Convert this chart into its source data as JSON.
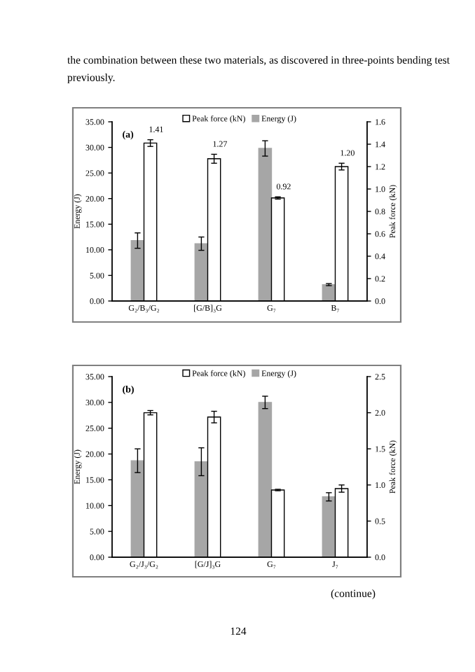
{
  "chart_data": [
    {
      "type": "bar",
      "title": "(a)",
      "ylabel": "Energy (J)",
      "y2label": "Peak force (kN)",
      "categories": [
        "G₂/B₃/G₂",
        "[G/B]₃G",
        "G₇",
        "B₇"
      ],
      "series": [
        {
          "name": "Energy (J)",
          "color": "#a6a6a6",
          "values": [
            11.8,
            11.2,
            29.8,
            3.2
          ],
          "errors": [
            1.5,
            1.3,
            1.5,
            0.2
          ]
        },
        {
          "name": "Peak force (kN)",
          "color": "#ffffff",
          "axis": "y2",
          "values": [
            1.41,
            1.27,
            0.92,
            1.2
          ],
          "errors": [
            0.03,
            0.04,
            0.01,
            0.03
          ],
          "value_labels": [
            "1.41",
            "1.27",
            "0.92",
            "1.20"
          ]
        }
      ],
      "ylim": [
        0,
        35
      ],
      "yticks": [
        {
          "value": 0,
          "label": "0.00"
        },
        {
          "value": 5,
          "label": "5.00"
        },
        {
          "value": 10,
          "label": "10.00"
        },
        {
          "value": 15,
          "label": "15.00"
        },
        {
          "value": 20,
          "label": "20.00"
        },
        {
          "value": 25,
          "label": "25.00"
        },
        {
          "value": 30,
          "label": "30.00"
        },
        {
          "value": 35,
          "label": "35.00"
        }
      ],
      "y2lim": [
        0,
        1.6
      ],
      "y2ticks": [
        {
          "value": 0,
          "label": "0.0"
        },
        {
          "value": 0.2,
          "label": "0.2"
        },
        {
          "value": 0.4,
          "label": "0.4"
        },
        {
          "value": 0.6,
          "label": "0.6"
        },
        {
          "value": 0.8,
          "label": "0.8"
        },
        {
          "value": 1.0,
          "label": "1.0"
        },
        {
          "value": 1.2,
          "label": "1.2"
        },
        {
          "value": 1.4,
          "label": "1.4"
        },
        {
          "value": 1.6,
          "label": "1.6"
        }
      ],
      "legend": "top",
      "grid": false,
      "annotations": [
        "the combination between these two materials, as discovered in three-points bending test previously."
      ]
    },
    {
      "type": "bar",
      "title": "(b)",
      "ylabel": "Energy (J)",
      "y2label": "Peak force (kN)",
      "categories": [
        "G₂/J₃/G₂",
        "[G/J]₃G",
        "G₇",
        "J₇"
      ],
      "series": [
        {
          "name": "Energy (J)",
          "color": "#a6a6a6",
          "values": [
            18.7,
            18.5,
            30.0,
            11.7
          ],
          "errors": [
            2.3,
            2.7,
            1.2,
            0.8
          ]
        },
        {
          "name": "Peak force (kN)",
          "color": "#ffffff",
          "axis": "y2",
          "values": [
            2.0,
            1.94,
            0.93,
            0.95
          ],
          "errors": [
            0.03,
            0.08,
            0.01,
            0.05
          ]
        }
      ],
      "ylim": [
        0,
        35
      ],
      "yticks": [
        {
          "value": 0,
          "label": "0.00"
        },
        {
          "value": 5,
          "label": "5.00"
        },
        {
          "value": 10,
          "label": "10.00"
        },
        {
          "value": 15,
          "label": "15.00"
        },
        {
          "value": 20,
          "label": "20.00"
        },
        {
          "value": 25,
          "label": "25.00"
        },
        {
          "value": 30,
          "label": "30.00"
        },
        {
          "value": 35,
          "label": "35.00"
        }
      ],
      "y2lim": [
        0,
        2.5
      ],
      "y2ticks": [
        {
          "value": 0,
          "label": "0.0"
        },
        {
          "value": 0.5,
          "label": "0.5"
        },
        {
          "value": 1.0,
          "label": "1.0"
        },
        {
          "value": 1.5,
          "label": "1.5"
        },
        {
          "value": 2.0,
          "label": "2.0"
        },
        {
          "value": 2.5,
          "label": "2.5"
        }
      ],
      "legend": "top",
      "grid": false,
      "annotations": [
        "(continue)",
        "124"
      ]
    }
  ]
}
